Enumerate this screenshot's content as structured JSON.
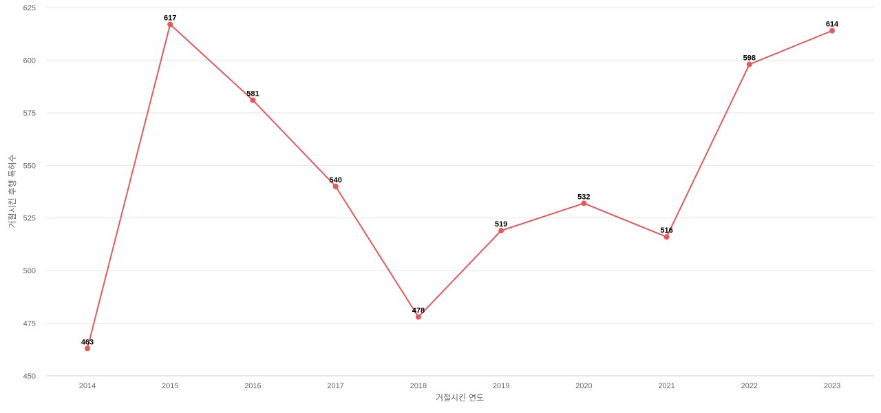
{
  "chart_data": {
    "type": "line",
    "title": "",
    "xlabel": "거절시킨 연도",
    "ylabel": "거절시킨 후행 특허수",
    "categories": [
      "2014",
      "2015",
      "2016",
      "2017",
      "2018",
      "2019",
      "2020",
      "2021",
      "2022",
      "2023"
    ],
    "series": [
      {
        "values": [
          463,
          617,
          581,
          540,
          478,
          519,
          532,
          516,
          598,
          614
        ],
        "color": "#e8585a"
      }
    ],
    "ylim": [
      450,
      625
    ],
    "yticks": [
      450,
      475,
      500,
      525,
      550,
      575,
      600,
      625
    ],
    "grid": true,
    "legend": "none"
  }
}
